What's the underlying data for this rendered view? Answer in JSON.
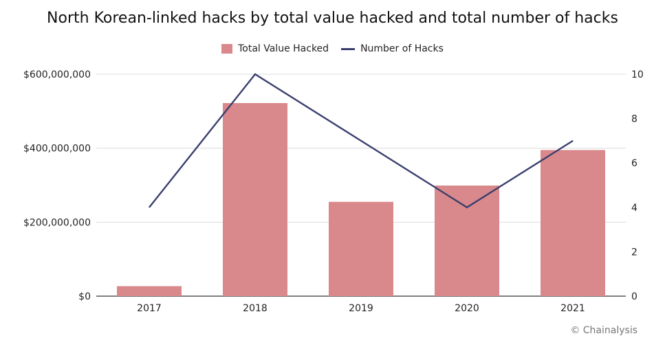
{
  "chart_data": {
    "type": "bar",
    "title": "North Korean-linked hacks by total value hacked and total number of hacks",
    "categories": [
      "2017",
      "2018",
      "2019",
      "2020",
      "2021"
    ],
    "series": [
      {
        "name": "Total Value Hacked",
        "type": "bar",
        "axis": "left",
        "values": [
          27000000,
          522000000,
          255000000,
          299000000,
          395000000
        ],
        "color": "#d9898b"
      },
      {
        "name": "Number of Hacks",
        "type": "line",
        "axis": "right",
        "values": [
          4,
          10,
          7,
          4,
          7
        ],
        "color": "#3b3f6e"
      }
    ],
    "y_left": {
      "ylim": [
        0,
        600000000
      ],
      "ticks": [
        0,
        200000000,
        400000000,
        600000000
      ],
      "tick_labels": [
        "$0",
        "$200,000,000",
        "$400,000,000",
        "$600,000,000"
      ]
    },
    "y_right": {
      "ylim": [
        0,
        10
      ],
      "ticks": [
        0,
        2,
        4,
        6,
        8,
        10
      ],
      "tick_labels": [
        "0",
        "2",
        "4",
        "6",
        "8",
        "10"
      ]
    },
    "grid": true,
    "legend": "top-center"
  },
  "credit": "© Chainalysis"
}
